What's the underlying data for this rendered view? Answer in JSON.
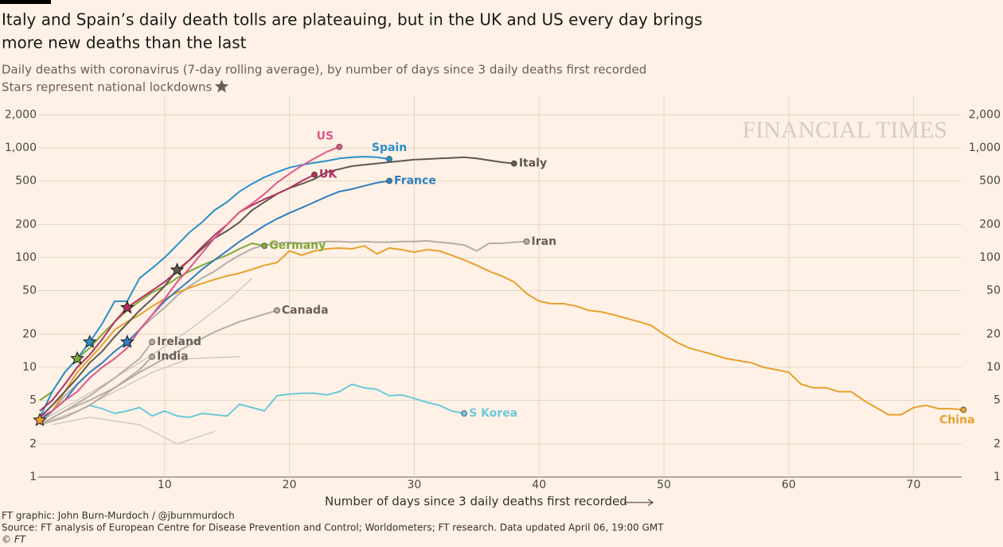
{
  "chart_data": {
    "type": "line",
    "title": [
      "Italy and Spain’s daily death tolls are plateauing, but in the UK and US every day brings",
      "more new deaths than the last"
    ],
    "subtitle": "Daily deaths with coronavirus (7-day rolling average), by number of days since 3 daily deaths first recorded",
    "note": "Stars represent national lockdowns",
    "watermark": "FINANCIAL TIMES",
    "x_label": "Number of days since 3 daily deaths first recorded",
    "credit": "FT graphic: John Burn-Murdoch / @jburnmurdoch",
    "source": "Source: FT analysis of European Centre for Disease Prevention and Control; Worldometers; FT research. Data updated April 06, 19:00 GMT",
    "copyright": "© FT",
    "ylog": true,
    "grid": true,
    "xlim": [
      0,
      75
    ],
    "xticks": [
      10,
      20,
      30,
      40,
      50,
      60,
      70
    ],
    "ylim": [
      1,
      2500
    ],
    "yticks": [
      1,
      2,
      5,
      10,
      20,
      50,
      100,
      200,
      500,
      {
        "value": 1000,
        "label": "1,000"
      },
      {
        "value": 2000,
        "label": "2,000"
      }
    ],
    "series": [
      {
        "color": "#c9c1ba",
        "x": [
          0,
          3,
          6,
          9,
          12,
          15,
          17
        ],
        "values": [
          3.2,
          5,
          8,
          13,
          22,
          40,
          65
        ]
      },
      {
        "color": "#c9c1ba",
        "x": [
          1,
          4,
          8,
          11,
          14
        ],
        "values": [
          3,
          3.5,
          3,
          2,
          2.6
        ]
      },
      {
        "color": "#c9c1ba",
        "x": [
          0,
          3,
          6,
          9,
          12,
          16
        ],
        "values": [
          3,
          4,
          6,
          9,
          12,
          12.5
        ]
      },
      {
        "name": "Iran",
        "color": "#b5aea8",
        "x": [
          0,
          1,
          2,
          3,
          4,
          5,
          6,
          7,
          8,
          9,
          10,
          11,
          12,
          13,
          14,
          15,
          16,
          17,
          18,
          19,
          20,
          21,
          22,
          23,
          24,
          25,
          26,
          27,
          28,
          29,
          30,
          31,
          32,
          33,
          34,
          35,
          36,
          37,
          38,
          39
        ],
        "values": [
          3,
          4,
          5.5,
          7,
          9,
          11,
          14,
          17,
          22,
          28,
          35,
          45,
          55,
          65,
          75,
          90,
          105,
          120,
          130,
          135,
          138,
          135,
          137,
          140,
          140,
          138,
          140,
          138,
          138,
          140,
          140,
          142,
          138,
          135,
          130,
          115,
          135,
          135,
          138,
          140
        ]
      },
      {
        "name": "Canada",
        "color": "#b5aea8",
        "x": [
          0,
          2,
          4,
          6,
          8,
          10,
          12,
          14,
          16,
          19
        ],
        "values": [
          3,
          4,
          5,
          6.5,
          9,
          12,
          16,
          21,
          26,
          33
        ]
      },
      {
        "name": "Ireland",
        "color": "#b5aea8",
        "x": [
          0,
          2,
          4,
          6,
          8,
          9
        ],
        "values": [
          3,
          4,
          5.5,
          8,
          12,
          17
        ]
      },
      {
        "name": "India",
        "color": "#b5aea8",
        "x": [
          0,
          2,
          4,
          6,
          8,
          9
        ],
        "values": [
          3,
          3.5,
          4.5,
          6.5,
          9.5,
          12.5
        ]
      },
      {
        "name": "S Korea",
        "color": "#6cc9db",
        "x": [
          4,
          5,
          6,
          7,
          8,
          9,
          10,
          11,
          12,
          13,
          14,
          15,
          16,
          17,
          18,
          19,
          20,
          21,
          22,
          23,
          24,
          25,
          26,
          27,
          28,
          29,
          30,
          31,
          32,
          33,
          34
        ],
        "values": [
          4.5,
          4.2,
          3.8,
          4,
          4.3,
          3.6,
          4,
          3.6,
          3.5,
          3.8,
          3.7,
          3.6,
          4.6,
          4.3,
          4,
          5.5,
          5.7,
          5.8,
          5.8,
          5.6,
          6,
          7,
          6.5,
          6.3,
          5.5,
          5.6,
          5.2,
          4.8,
          4.5,
          4,
          3.8
        ]
      },
      {
        "name": "China",
        "color": "#e8a02e",
        "lockdown": 0,
        "x": [
          0,
          1,
          2,
          3,
          4,
          5,
          6,
          7,
          8,
          9,
          10,
          11,
          12,
          13,
          14,
          15,
          16,
          17,
          18,
          19,
          20,
          21,
          22,
          23,
          24,
          25,
          26,
          27,
          28,
          29,
          30,
          31,
          32,
          33,
          34,
          35,
          36,
          37,
          38,
          39,
          40,
          41,
          42,
          43,
          44,
          45,
          46,
          47,
          48,
          49,
          50,
          51,
          52,
          53,
          54,
          55,
          56,
          57,
          58,
          59,
          60,
          61,
          62,
          63,
          64,
          65,
          66,
          67,
          68,
          69,
          70,
          71,
          72,
          73,
          74
        ],
        "values": [
          3.3,
          4,
          6,
          9,
          12,
          16,
          22,
          26,
          30,
          36,
          42,
          48,
          53,
          58,
          63,
          68,
          72,
          78,
          85,
          90,
          115,
          105,
          115,
          120,
          122,
          120,
          128,
          108,
          122,
          118,
          112,
          118,
          115,
          105,
          95,
          85,
          75,
          68,
          60,
          47,
          40,
          38,
          38,
          36,
          33,
          32,
          30,
          28,
          26,
          24,
          20,
          17,
          15,
          14,
          13,
          12,
          11.5,
          11,
          10,
          9.5,
          9,
          7,
          6.5,
          6.5,
          6,
          6,
          5,
          4.3,
          3.7,
          3.7,
          4.3,
          4.5,
          4.2,
          4.2,
          4.1
        ]
      },
      {
        "name": "Germany",
        "color": "#7fa83a",
        "lockdown": 3,
        "x": [
          0,
          1,
          2,
          3,
          4,
          5,
          6,
          7,
          8,
          9,
          10,
          11,
          12,
          13,
          14,
          15,
          16,
          17,
          18
        ],
        "values": [
          5,
          6,
          9,
          12,
          15,
          20,
          26,
          33,
          40,
          48,
          55,
          65,
          75,
          85,
          95,
          105,
          120,
          135,
          128
        ]
      },
      {
        "name": "France",
        "color": "#2f7fc1",
        "lockdown": 7,
        "x": [
          0,
          1,
          2,
          3,
          4,
          5,
          6,
          7,
          8,
          9,
          10,
          11,
          12,
          13,
          14,
          15,
          16,
          17,
          18,
          19,
          20,
          21,
          22,
          23,
          24,
          25,
          26,
          27,
          28
        ],
        "values": [
          3.3,
          4,
          5,
          7,
          9,
          11,
          14,
          17,
          22,
          30,
          40,
          50,
          62,
          78,
          95,
          115,
          140,
          165,
          195,
          225,
          255,
          285,
          320,
          360,
          400,
          420,
          450,
          480,
          500
        ]
      },
      {
        "name": "Spain",
        "color": "#2a8fcb",
        "lockdown": 4,
        "x": [
          0,
          1,
          2,
          3,
          4,
          5,
          6,
          7,
          8,
          9,
          10,
          11,
          12,
          13,
          14,
          15,
          16,
          17,
          18,
          19,
          20,
          21,
          22,
          23,
          24,
          25,
          26,
          27,
          28
        ],
        "values": [
          3.5,
          6,
          9,
          12,
          17,
          25,
          40,
          40,
          65,
          80,
          100,
          130,
          170,
          210,
          270,
          320,
          400,
          470,
          540,
          600,
          660,
          700,
          730,
          760,
          800,
          820,
          830,
          820,
          790
        ]
      },
      {
        "name": "Italy",
        "color": "#5f5753",
        "lockdown": 11,
        "x": [
          0,
          1,
          2,
          3,
          4,
          5,
          6,
          7,
          8,
          9,
          10,
          11,
          12,
          13,
          14,
          15,
          16,
          17,
          18,
          19,
          20,
          21,
          22,
          23,
          24,
          25,
          26,
          27,
          28,
          29,
          30,
          31,
          32,
          33,
          34,
          35,
          36,
          37,
          38
        ],
        "values": [
          3.5,
          4.5,
          6,
          8,
          11,
          14,
          19,
          25,
          33,
          42,
          55,
          77,
          95,
          120,
          150,
          175,
          210,
          270,
          320,
          380,
          430,
          470,
          520,
          600,
          640,
          680,
          700,
          720,
          740,
          760,
          780,
          790,
          800,
          810,
          820,
          800,
          770,
          740,
          720
        ]
      },
      {
        "name": "UK",
        "color": "#b0325f",
        "lockdown": 7,
        "x": [
          0,
          1,
          2,
          3,
          4,
          5,
          6,
          7,
          8,
          9,
          10,
          11,
          12,
          13,
          14,
          15,
          16,
          17,
          18,
          19,
          20,
          21,
          22
        ],
        "values": [
          4,
          5,
          7,
          10,
          13,
          18,
          26,
          35,
          42,
          50,
          60,
          75,
          95,
          125,
          160,
          200,
          260,
          300,
          340,
          380,
          430,
          500,
          570
        ]
      },
      {
        "name": "US",
        "color": "#e0578a",
        "x": [
          0,
          1,
          2,
          3,
          4,
          5,
          6,
          7,
          8,
          9,
          10,
          11,
          12,
          13,
          14,
          15,
          16,
          17,
          18,
          19,
          20,
          21,
          22,
          23,
          24
        ],
        "values": [
          3.5,
          4,
          5,
          6,
          8,
          10,
          12,
          15,
          22,
          30,
          42,
          60,
          80,
          110,
          150,
          200,
          260,
          310,
          380,
          480,
          580,
          690,
          800,
          920,
          1020
        ]
      }
    ]
  }
}
